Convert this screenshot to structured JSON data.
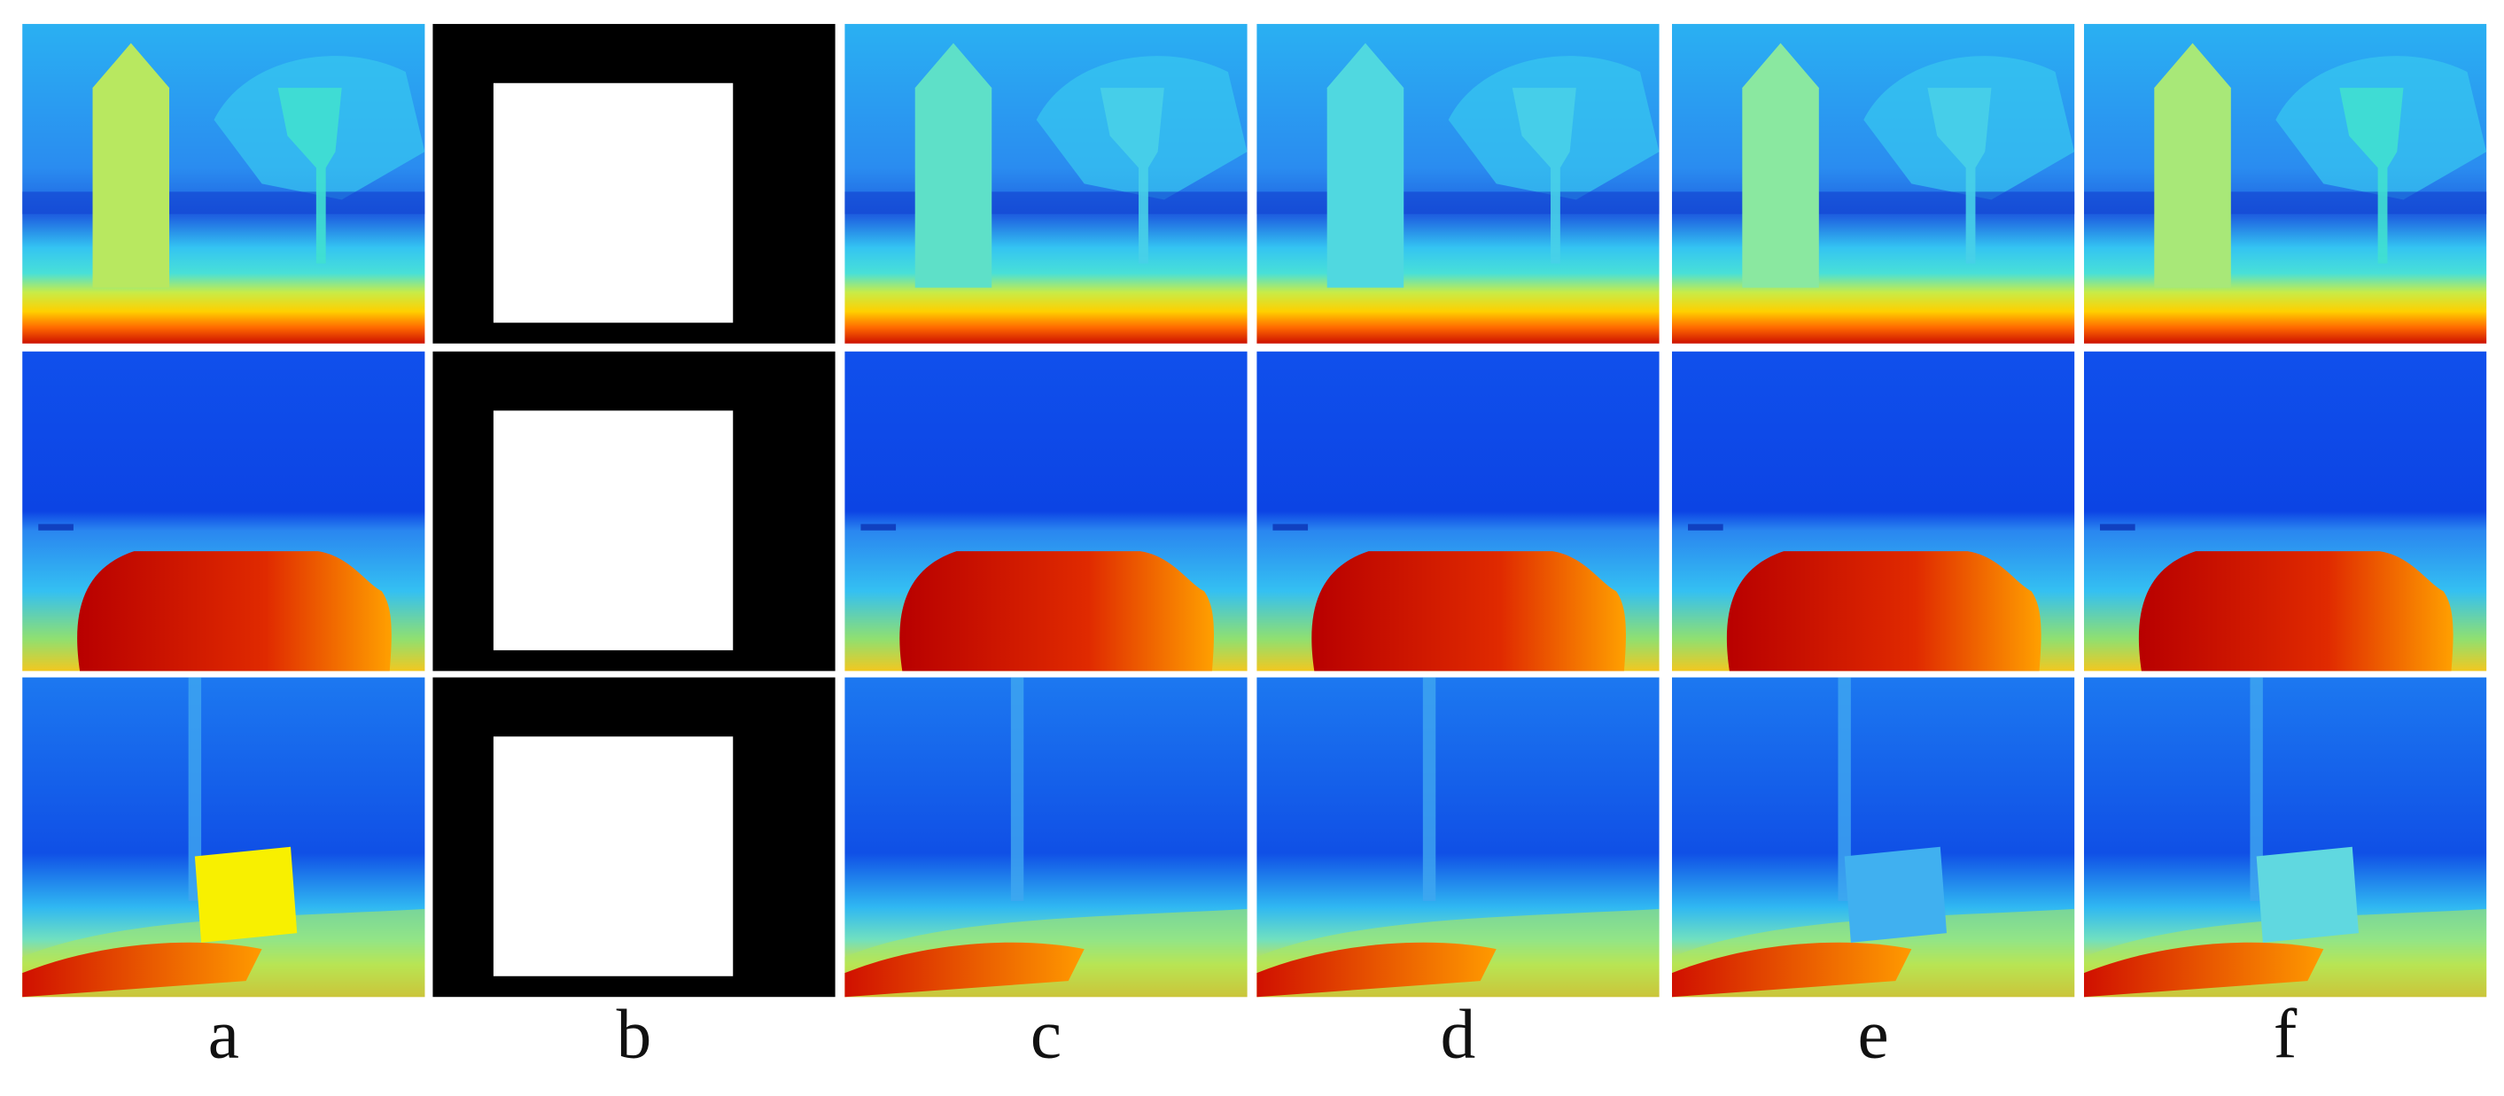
{
  "labels": [
    "a",
    "b",
    "c",
    "d",
    "e",
    "f"
  ]
}
